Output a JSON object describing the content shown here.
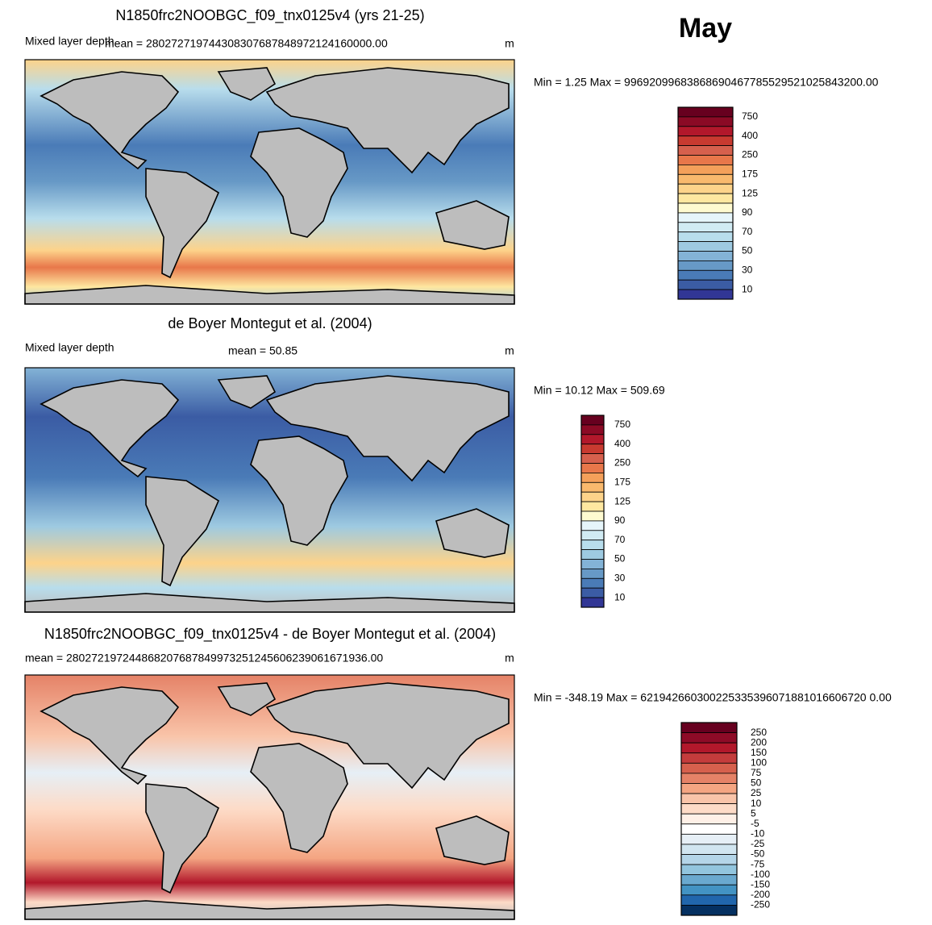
{
  "header": {
    "month": "May"
  },
  "panels": [
    {
      "title": "N1850frc2NOOBGC_f09_tnx0125v4 (yrs 21-25)",
      "left_label": "Mixed layer depth",
      "center_label": "mean = 280272719744308307687848972124160000.00",
      "units": "m",
      "minmax": "Min =   1.25 Max = 99692099683868690467785529521025843200.00",
      "colorbar": {
        "labels": [
          750,
          400,
          250,
          175,
          125,
          90,
          70,
          50,
          30,
          10
        ],
        "colors": [
          "#67001f",
          "#8b0a25",
          "#b2182b",
          "#c83a30",
          "#d6604d",
          "#e8774a",
          "#f4a05a",
          "#f9b96d",
          "#fdd38a",
          "#fee7a0",
          "#fefad0",
          "#e6f5fa",
          "#d1ebf3",
          "#b8ddec",
          "#9ecae1",
          "#83b3d6",
          "#6799c6",
          "#4a7bb7",
          "#3b5ca4",
          "#313695"
        ]
      }
    },
    {
      "title": "de Boyer Montegut et al. (2004)",
      "left_label": "Mixed layer depth",
      "center_label": "mean =  50.85",
      "units": "m",
      "minmax": "Min =  10.12 Max = 509.69",
      "colorbar": {
        "labels": [
          750,
          400,
          250,
          175,
          125,
          90,
          70,
          50,
          30,
          10
        ],
        "colors": [
          "#67001f",
          "#8b0a25",
          "#b2182b",
          "#c83a30",
          "#d6604d",
          "#e8774a",
          "#f4a05a",
          "#f9b96d",
          "#fdd38a",
          "#fee7a0",
          "#fefad0",
          "#e6f5fa",
          "#d1ebf3",
          "#b8ddec",
          "#9ecae1",
          "#83b3d6",
          "#6799c6",
          "#4a7bb7",
          "#3b5ca4",
          "#313695"
        ]
      }
    },
    {
      "title": "N1850frc2NOOBGC_f09_tnx0125v4 - de Boyer Montegut et al. (2004)",
      "center_label": "mean = 280272197244868207687849973251245606239061671936.00",
      "units": "m",
      "minmax": "Min = -348.19 Max = 621942660300225335396071881016606720 0.00",
      "colorbar": {
        "labels": [
          250,
          200,
          150,
          100,
          75,
          50,
          25,
          10,
          5,
          -5,
          -10,
          -25,
          -50,
          -75,
          -100,
          -150,
          -200,
          -250
        ],
        "colors": [
          "#67001f",
          "#8e0b27",
          "#b2182b",
          "#c43c3c",
          "#d6604d",
          "#e58267",
          "#f4a582",
          "#f9c4a9",
          "#fddbc7",
          "#fef0e7",
          "#ffffff",
          "#e6eff6",
          "#d1e5f0",
          "#b4d5e8",
          "#92c5de",
          "#6aa9cf",
          "#4393c3",
          "#2166ac",
          "#053061"
        ]
      }
    }
  ]
}
